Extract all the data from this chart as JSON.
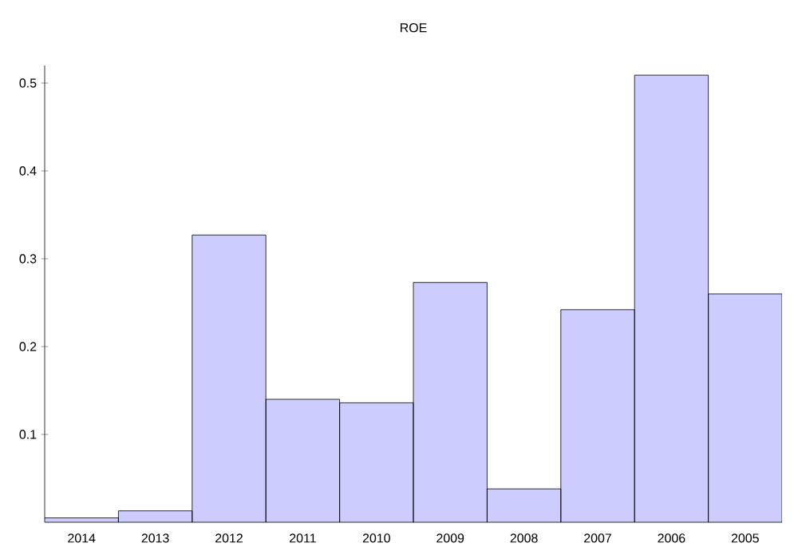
{
  "chart_data": {
    "type": "bar",
    "title": "ROE",
    "categories": [
      "2014",
      "2013",
      "2012",
      "2011",
      "2010",
      "2009",
      "2008",
      "2007",
      "2006",
      "2005"
    ],
    "values": [
      0.005,
      0.013,
      0.327,
      0.14,
      0.136,
      0.273,
      0.038,
      0.242,
      0.509,
      0.26
    ],
    "color": "#ccccff",
    "ylim": [
      0,
      0.52
    ],
    "yticks": [
      0.1,
      0.2,
      0.3,
      0.4,
      0.5
    ]
  }
}
